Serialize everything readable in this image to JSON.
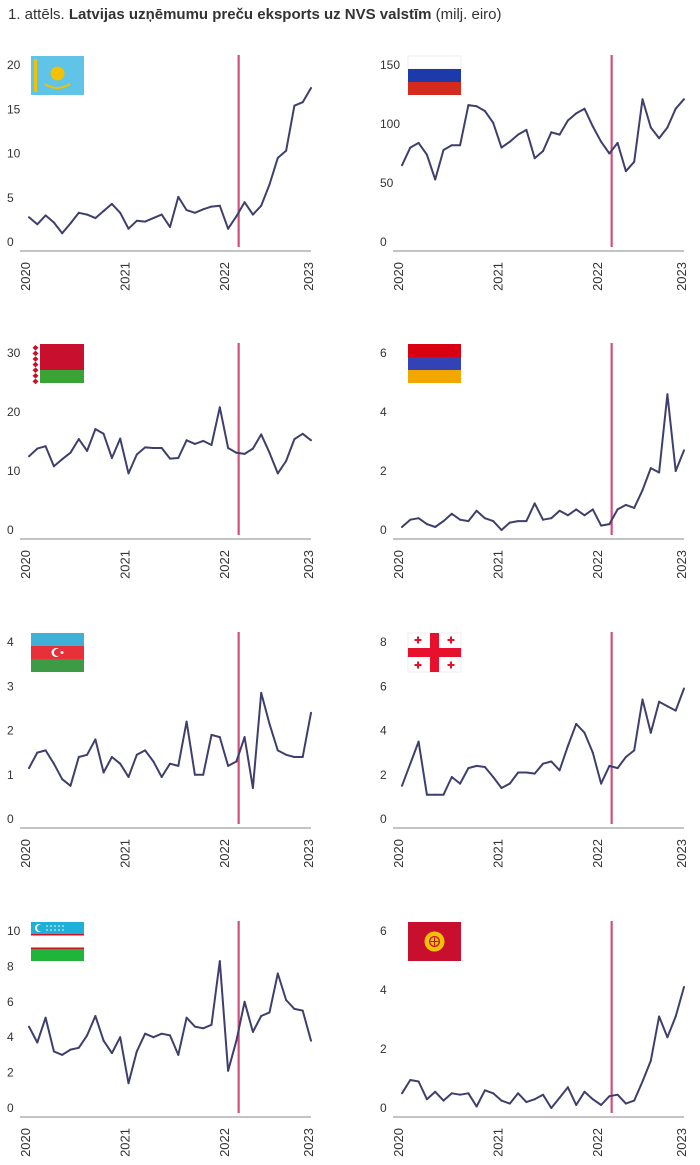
{
  "header": {
    "prefix": "1. attēls.",
    "title": "Latvijas uzņēmumu preču eksports uz NVS valstīm",
    "unit": "(milj. eiro)"
  },
  "colors": {
    "line": "#3f3f6e",
    "marker": "#d0507a",
    "axis": "#888888",
    "text": "#333333"
  },
  "chart_data": [
    {
      "type": "line",
      "flag": "kazakhstan-flag",
      "x_ticks": [
        "2020",
        "2021",
        "2022",
        "2023"
      ],
      "y_ticks": [
        "0",
        "5",
        "10",
        "15",
        "20"
      ],
      "ylim": [
        0,
        20
      ],
      "marker_x": 26,
      "values": [
        2.8,
        2.0,
        3.0,
        2.2,
        1.0,
        2.1,
        3.3,
        3.1,
        2.7,
        3.5,
        4.3,
        3.3,
        1.5,
        2.4,
        2.3,
        2.7,
        3.1,
        1.7,
        5.1,
        3.6,
        3.3,
        3.7,
        4.0,
        4.1,
        1.5,
        2.9,
        4.5,
        3.1,
        4.1,
        6.5,
        9.5,
        10.3,
        15.4,
        15.8,
        17.4
      ]
    },
    {
      "type": "line",
      "flag": "russia-flag",
      "x_ticks": [
        "2020",
        "2021",
        "2022",
        "2023"
      ],
      "y_ticks": [
        "0",
        "50",
        "100",
        "150"
      ],
      "ylim": [
        0,
        150
      ],
      "marker_x": 26,
      "values": [
        65,
        80,
        84,
        74,
        53,
        78,
        82,
        82,
        116,
        115,
        111,
        101,
        80,
        85,
        91,
        95,
        71,
        77,
        93,
        91,
        103,
        109,
        113,
        98,
        85,
        75,
        84,
        60,
        68,
        121,
        97,
        88,
        97,
        113,
        121
      ]
    },
    {
      "type": "line",
      "flag": "belarus-flag",
      "x_ticks": [
        "2020",
        "2021",
        "2022",
        "2023"
      ],
      "y_ticks": [
        "0",
        "10",
        "20",
        "30"
      ],
      "ylim": [
        0,
        30
      ],
      "marker_x": 26,
      "values": [
        12.5,
        13.8,
        14.2,
        10.8,
        12.0,
        13.1,
        15.4,
        13.4,
        17.1,
        16.3,
        12.2,
        15.5,
        9.6,
        12.8,
        14.0,
        13.9,
        13.9,
        12.1,
        12.2,
        15.2,
        14.6,
        15.1,
        14.4,
        20.8,
        13.9,
        13.1,
        12.9,
        13.8,
        16.2,
        13.1,
        9.6,
        11.7,
        15.4,
        16.3,
        15.2
      ]
    },
    {
      "type": "line",
      "flag": "armenia-flag",
      "x_ticks": [
        "2020",
        "2021",
        "2022",
        "2023"
      ],
      "y_ticks": [
        "0",
        "2",
        "4",
        "6"
      ],
      "ylim": [
        0,
        6
      ],
      "marker_x": 26,
      "values": [
        0.1,
        0.35,
        0.4,
        0.2,
        0.1,
        0.3,
        0.55,
        0.35,
        0.3,
        0.65,
        0.4,
        0.3,
        0.0,
        0.25,
        0.3,
        0.3,
        0.9,
        0.35,
        0.4,
        0.65,
        0.5,
        0.7,
        0.5,
        0.7,
        0.15,
        0.2,
        0.7,
        0.85,
        0.75,
        1.35,
        2.1,
        1.95,
        4.6,
        2.0,
        2.7
      ]
    },
    {
      "type": "line",
      "flag": "azerbaijan-flag",
      "x_ticks": [
        "2020",
        "2021",
        "2022",
        "2023"
      ],
      "y_ticks": [
        "0",
        "1",
        "2",
        "3",
        "4"
      ],
      "ylim": [
        0,
        4
      ],
      "marker_x": 26,
      "values": [
        1.15,
        1.5,
        1.55,
        1.25,
        0.9,
        0.75,
        1.4,
        1.45,
        1.8,
        1.05,
        1.4,
        1.25,
        0.95,
        1.45,
        1.55,
        1.3,
        0.95,
        1.25,
        1.2,
        2.2,
        1.0,
        1.0,
        1.9,
        1.85,
        1.2,
        1.3,
        1.85,
        0.7,
        2.85,
        2.15,
        1.55,
        1.45,
        1.4,
        1.4,
        2.4
      ]
    },
    {
      "type": "line",
      "flag": "georgia-flag",
      "x_ticks": [
        "2020",
        "2021",
        "2022",
        "2023"
      ],
      "y_ticks": [
        "0",
        "2",
        "4",
        "6",
        "8"
      ],
      "ylim": [
        0,
        8
      ],
      "marker_x": 26,
      "values": [
        1.5,
        2.5,
        3.5,
        1.1,
        1.1,
        1.1,
        1.9,
        1.6,
        2.3,
        2.4,
        2.35,
        1.9,
        1.4,
        1.6,
        2.1,
        2.1,
        2.05,
        2.5,
        2.6,
        2.2,
        3.3,
        4.3,
        3.9,
        3.0,
        1.6,
        2.4,
        2.3,
        2.8,
        3.1,
        5.4,
        3.9,
        5.3,
        5.1,
        4.9,
        5.9
      ]
    },
    {
      "type": "line",
      "flag": "uzbekistan-flag",
      "x_ticks": [
        "2020",
        "2021",
        "2022",
        "2023"
      ],
      "y_ticks": [
        "0",
        "2",
        "4",
        "6",
        "8",
        "10"
      ],
      "ylim": [
        0,
        10
      ],
      "marker_x": 26,
      "values": [
        4.6,
        3.7,
        5.1,
        3.2,
        3.0,
        3.3,
        3.4,
        4.1,
        5.2,
        3.8,
        3.1,
        4.0,
        1.4,
        3.2,
        4.2,
        4.0,
        4.2,
        4.1,
        3.0,
        5.1,
        4.6,
        4.5,
        4.7,
        8.3,
        2.1,
        3.8,
        6.0,
        4.3,
        5.2,
        5.4,
        7.6,
        6.1,
        5.6,
        5.5,
        3.8
      ]
    },
    {
      "type": "line",
      "flag": "kyrgyzstan-flag",
      "x_ticks": [
        "2020",
        "2021",
        "2022",
        "2023"
      ],
      "y_ticks": [
        "0",
        "2",
        "4",
        "6"
      ],
      "ylim": [
        0,
        6
      ],
      "marker_x": 26,
      "values": [
        0.5,
        0.95,
        0.9,
        0.3,
        0.55,
        0.25,
        0.5,
        0.45,
        0.5,
        0.05,
        0.6,
        0.5,
        0.25,
        0.15,
        0.5,
        0.2,
        0.3,
        0.45,
        0.0,
        0.35,
        0.7,
        0.1,
        0.55,
        0.3,
        0.1,
        0.4,
        0.45,
        0.15,
        0.25,
        0.9,
        1.6,
        3.1,
        2.4,
        3.1,
        4.1
      ]
    }
  ]
}
